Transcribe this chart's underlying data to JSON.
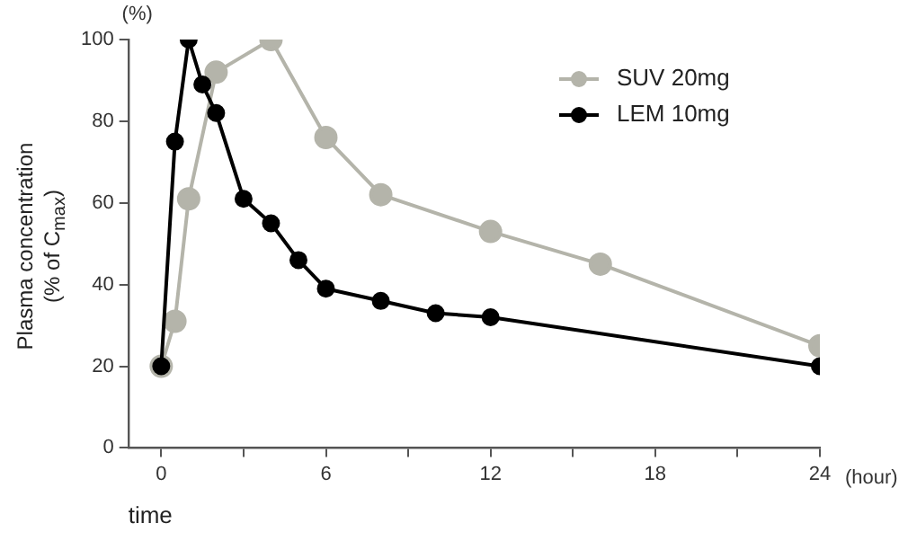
{
  "chart_data": {
    "type": "line",
    "xlabel": "time",
    "ylabel": "Plasma concentration\n(% of C$_{max}$)",
    "annotations": [
      "(%)",
      "(hour)"
    ],
    "xlim": [
      -1.2,
      24
    ],
    "xticks": [
      0,
      {
        "value": 3,
        "label": null
      },
      6,
      {
        "value": 9,
        "label": null
      },
      12,
      {
        "value": 15,
        "label": null
      },
      18,
      {
        "value": 21,
        "label": null
      },
      24
    ],
    "ylim": [
      0,
      100
    ],
    "yticks": [
      0,
      20,
      40,
      60,
      80,
      100
    ],
    "grid": false,
    "legend": "top right",
    "marker": "circle",
    "line_style": "solid",
    "series": [
      {
        "name": "SUV 20mg",
        "color": "#b4b4aa",
        "x": [
          0,
          0.5,
          1,
          2,
          4,
          6,
          8,
          12,
          16,
          24
        ],
        "values": [
          20,
          31,
          61,
          92,
          100,
          76,
          62,
          53,
          45,
          25
        ]
      },
      {
        "name": "LEM 10mg",
        "color": "#000000",
        "x": [
          0,
          0.5,
          1,
          1.5,
          2,
          3,
          4,
          5,
          6,
          8,
          10,
          12,
          24
        ],
        "values": [
          20,
          75,
          100,
          89,
          82,
          61,
          55,
          46,
          39,
          36,
          33,
          32,
          20
        ]
      }
    ]
  }
}
